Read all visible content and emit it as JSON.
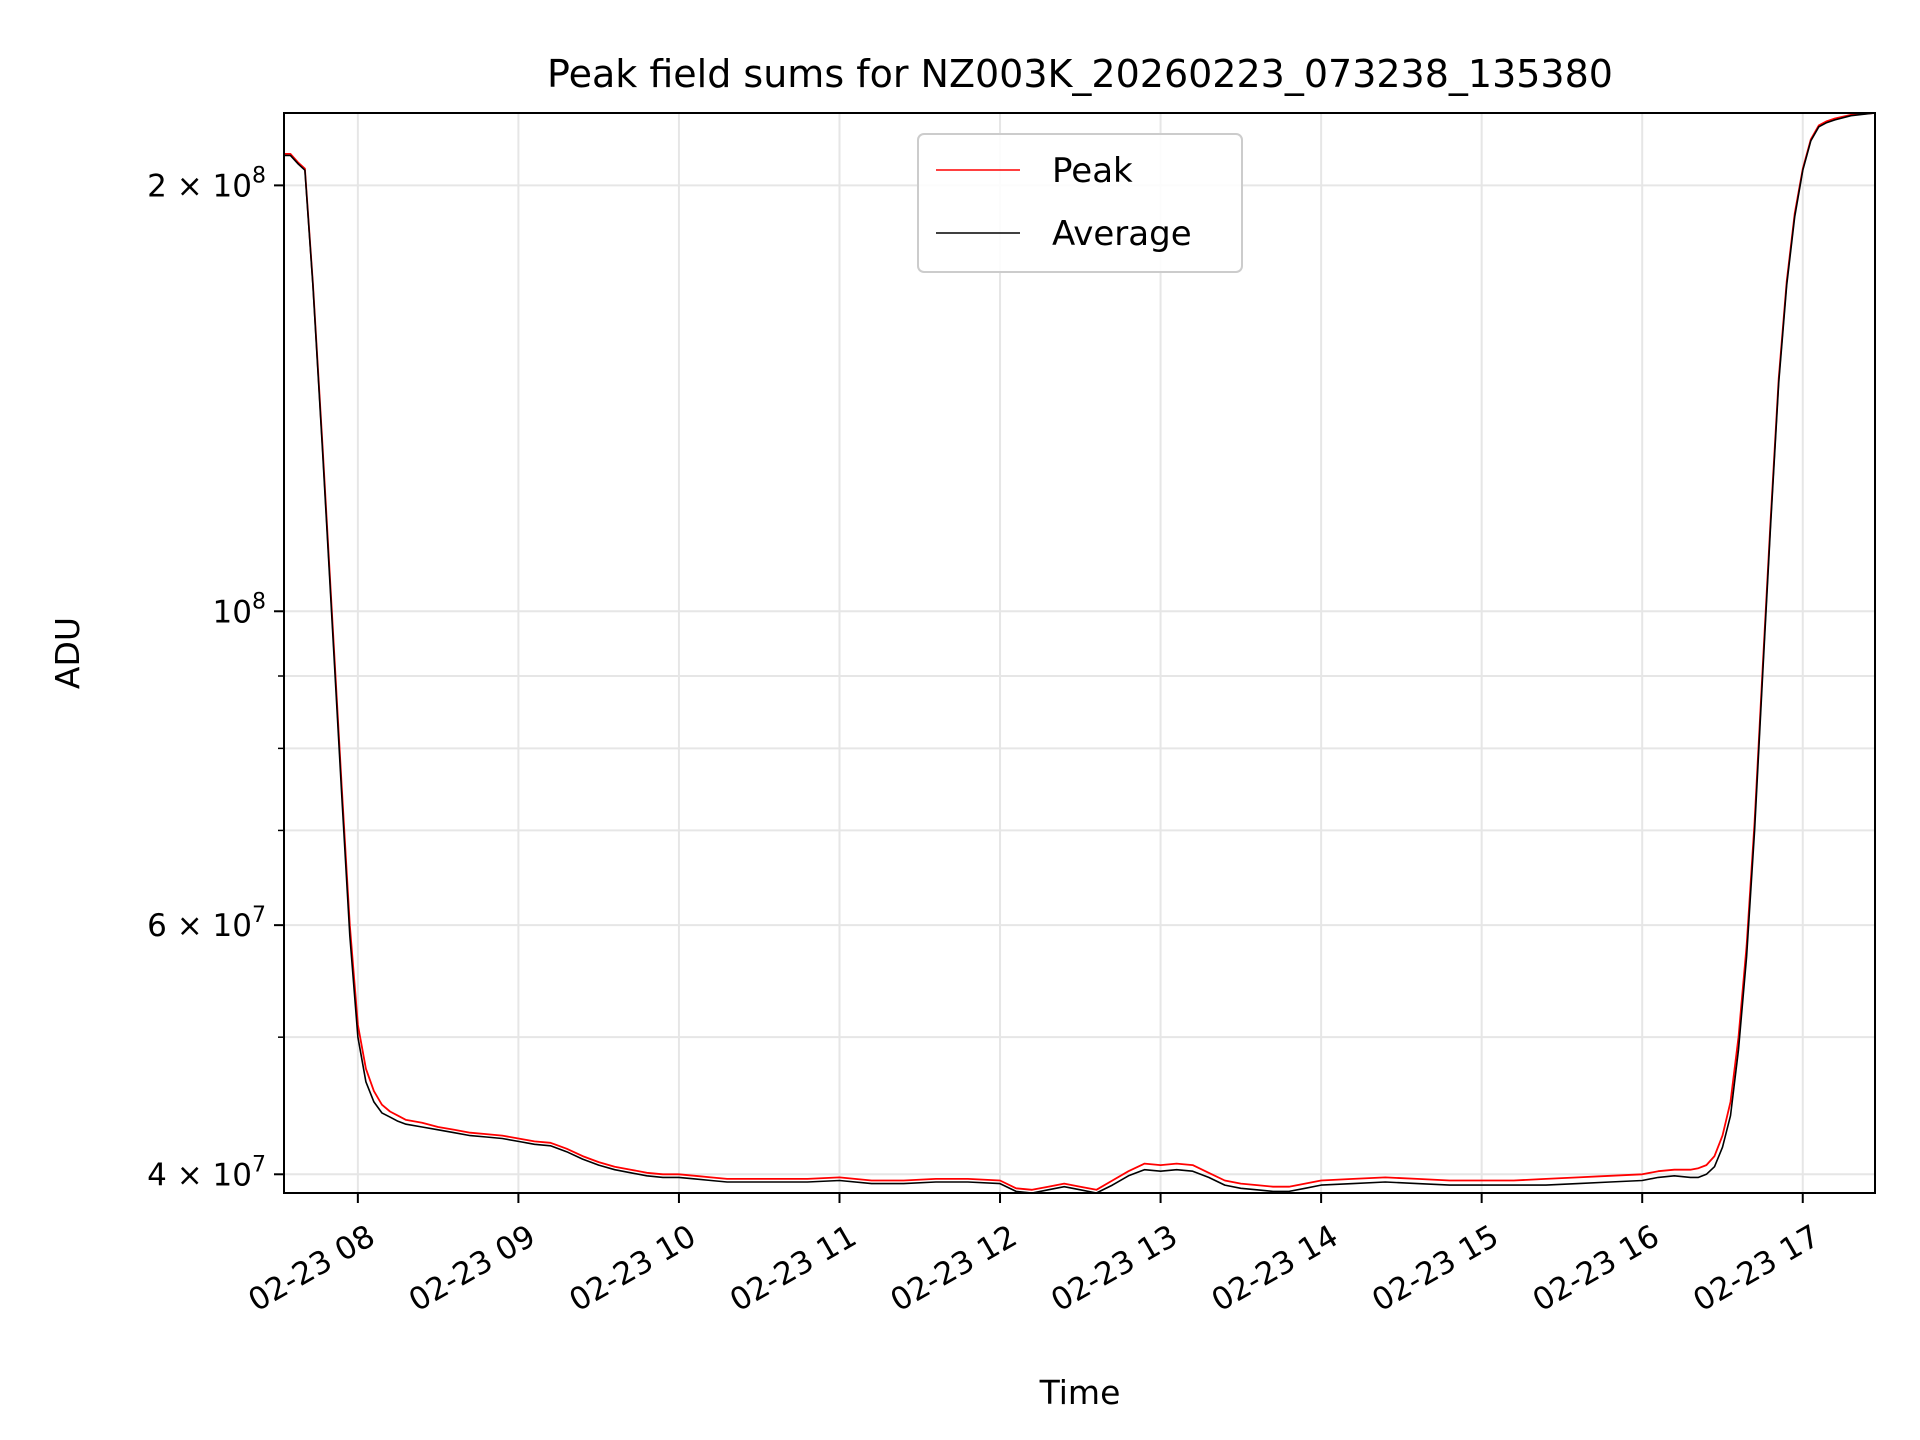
{
  "chart_data": {
    "type": "line",
    "title": "Peak field sums for NZ003K_20260223_073238_135380",
    "xlabel": "Time",
    "ylabel": "ADU",
    "yscale": "log",
    "grid": true,
    "legend_position": "top-center",
    "xlim": [
      7.54,
      17.45
    ],
    "ylim": [
      38800000,
      225000000
    ],
    "x_ticks": [
      {
        "value": 8,
        "label": "02-23 08"
      },
      {
        "value": 9,
        "label": "02-23 09"
      },
      {
        "value": 10,
        "label": "02-23 10"
      },
      {
        "value": 11,
        "label": "02-23 11"
      },
      {
        "value": 12,
        "label": "02-23 12"
      },
      {
        "value": 13,
        "label": "02-23 13"
      },
      {
        "value": 14,
        "label": "02-23 14"
      },
      {
        "value": 15,
        "label": "02-23 15"
      },
      {
        "value": 16,
        "label": "02-23 16"
      },
      {
        "value": 17,
        "label": "02-23 17"
      }
    ],
    "y_ticks": [
      {
        "value": 40000000,
        "base": "4 × 10",
        "exp": "7"
      },
      {
        "value": 60000000,
        "base": "6 × 10",
        "exp": "7"
      },
      {
        "value": 100000000,
        "base": "10",
        "exp": "8"
      },
      {
        "value": 200000000,
        "base": "2 × 10",
        "exp": "8"
      }
    ],
    "y_minor_ticks": [
      50000000,
      70000000,
      80000000,
      90000000
    ],
    "series": [
      {
        "name": "Average",
        "color": "#000000",
        "x": [
          7.54,
          7.58,
          7.63,
          7.67,
          7.72,
          7.78,
          7.84,
          7.9,
          7.95,
          8.0,
          8.05,
          8.1,
          8.15,
          8.2,
          8.25,
          8.3,
          8.4,
          8.5,
          8.6,
          8.7,
          8.8,
          8.9,
          9.0,
          9.1,
          9.2,
          9.3,
          9.4,
          9.5,
          9.6,
          9.7,
          9.8,
          9.9,
          10.0,
          10.1,
          10.2,
          10.3,
          10.4,
          10.6,
          10.8,
          11.0,
          11.2,
          11.4,
          11.6,
          11.8,
          12.0,
          12.1,
          12.2,
          12.3,
          12.4,
          12.5,
          12.6,
          12.7,
          12.8,
          12.9,
          13.0,
          13.1,
          13.2,
          13.3,
          13.4,
          13.5,
          13.6,
          13.7,
          13.8,
          13.9,
          14.0,
          14.2,
          14.4,
          14.6,
          14.8,
          15.0,
          15.2,
          15.4,
          15.6,
          15.8,
          16.0,
          16.1,
          16.2,
          16.3,
          16.35,
          16.4,
          16.45,
          16.5,
          16.55,
          16.6,
          16.65,
          16.7,
          16.75,
          16.8,
          16.85,
          16.9,
          16.95,
          17.0,
          17.05,
          17.1,
          17.15,
          17.2,
          17.3,
          17.45
        ],
        "values": [
          210000000,
          210000000,
          207000000,
          205000000,
          170000000,
          130000000,
          98000000,
          74000000,
          59000000,
          50000000,
          46500000,
          45000000,
          44200000,
          43900000,
          43600000,
          43400000,
          43200000,
          43000000,
          42800000,
          42600000,
          42500000,
          42400000,
          42200000,
          42000000,
          41900000,
          41500000,
          41000000,
          40600000,
          40300000,
          40100000,
          39900000,
          39800000,
          39800000,
          39700000,
          39600000,
          39500000,
          39500000,
          39500000,
          39500000,
          39600000,
          39400000,
          39400000,
          39500000,
          39500000,
          39400000,
          38900000,
          38800000,
          39000000,
          39200000,
          39000000,
          38800000,
          39300000,
          39900000,
          40300000,
          40200000,
          40300000,
          40200000,
          39800000,
          39300000,
          39100000,
          39000000,
          38900000,
          38900000,
          39100000,
          39300000,
          39400000,
          39500000,
          39400000,
          39300000,
          39300000,
          39300000,
          39300000,
          39400000,
          39500000,
          39600000,
          39800000,
          39900000,
          39800000,
          39800000,
          40000000,
          40500000,
          41800000,
          44000000,
          49000000,
          57000000,
          70000000,
          90000000,
          115000000,
          145000000,
          170000000,
          190000000,
          205000000,
          215000000,
          220000000,
          221500000,
          222500000,
          224000000,
          225000000
        ]
      },
      {
        "name": "Peak",
        "color": "#ff0000",
        "x": [
          7.54,
          7.58,
          7.63,
          7.67,
          7.72,
          7.78,
          7.84,
          7.9,
          7.95,
          8.0,
          8.05,
          8.1,
          8.15,
          8.2,
          8.25,
          8.3,
          8.4,
          8.5,
          8.6,
          8.7,
          8.8,
          8.9,
          9.0,
          9.1,
          9.2,
          9.3,
          9.4,
          9.5,
          9.6,
          9.7,
          9.8,
          9.9,
          10.0,
          10.1,
          10.2,
          10.3,
          10.4,
          10.6,
          10.8,
          11.0,
          11.2,
          11.4,
          11.6,
          11.8,
          12.0,
          12.1,
          12.2,
          12.3,
          12.4,
          12.5,
          12.6,
          12.7,
          12.8,
          12.9,
          13.0,
          13.1,
          13.2,
          13.3,
          13.4,
          13.5,
          13.6,
          13.7,
          13.8,
          13.9,
          14.0,
          14.2,
          14.4,
          14.6,
          14.8,
          15.0,
          15.2,
          15.4,
          15.6,
          15.8,
          16.0,
          16.1,
          16.2,
          16.3,
          16.35,
          16.4,
          16.45,
          16.5,
          16.55,
          16.6,
          16.65,
          16.7,
          16.75,
          16.8,
          16.85,
          16.9,
          16.95,
          17.0,
          17.05,
          17.1,
          17.15,
          17.2,
          17.3,
          17.45
        ],
        "values": [
          210500000,
          210500000,
          207500000,
          205500000,
          170500000,
          131000000,
          99000000,
          75000000,
          60000000,
          51000000,
          47500000,
          45800000,
          44800000,
          44300000,
          44000000,
          43700000,
          43500000,
          43200000,
          43000000,
          42800000,
          42700000,
          42600000,
          42400000,
          42200000,
          42100000,
          41700000,
          41200000,
          40800000,
          40500000,
          40300000,
          40100000,
          40000000,
          40000000,
          39900000,
          39800000,
          39700000,
          39700000,
          39700000,
          39700000,
          39800000,
          39600000,
          39600000,
          39700000,
          39700000,
          39600000,
          39100000,
          39000000,
          39200000,
          39400000,
          39200000,
          39000000,
          39600000,
          40200000,
          40700000,
          40600000,
          40700000,
          40600000,
          40100000,
          39600000,
          39400000,
          39300000,
          39200000,
          39200000,
          39400000,
          39600000,
          39700000,
          39800000,
          39700000,
          39600000,
          39600000,
          39600000,
          39700000,
          39800000,
          39900000,
          40000000,
          40200000,
          40300000,
          40300000,
          40400000,
          40600000,
          41200000,
          42600000,
          45000000,
          50000000,
          58000000,
          71000000,
          91000000,
          116000000,
          146000000,
          171000000,
          191000000,
          205500000,
          215500000,
          220500000,
          222000000,
          223000000,
          224300000,
          225000000
        ]
      }
    ]
  }
}
